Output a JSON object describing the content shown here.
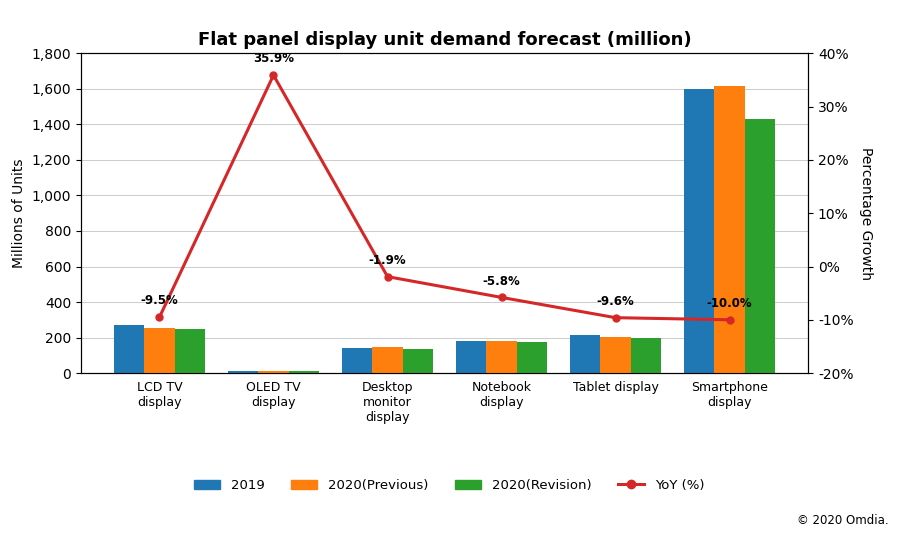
{
  "chart_data": {
    "type": "bar",
    "title": "Flat panel display unit demand forecast (million)",
    "categories": [
      "LCD TV\ndisplay",
      "OLED TV\ndisplay",
      "Desktop\nmonitor\ndisplay",
      "Notebook\ndisplay",
      "Tablet display",
      "Smartphone\ndisplay"
    ],
    "series": [
      {
        "name": "2019",
        "values": [
          270,
          14,
          140,
          180,
          215,
          1600
        ]
      },
      {
        "name": "2020(Previous)",
        "values": [
          255,
          14,
          148,
          180,
          205,
          1615
        ]
      },
      {
        "name": "2020(Revision)",
        "values": [
          248,
          11,
          138,
          175,
          196,
          1430
        ]
      },
      {
        "name": "YoY (%)",
        "type": "line",
        "axis": "y2",
        "marker": "o",
        "data_labels": true,
        "values": [
          -9.5,
          35.9,
          -1.9,
          -5.8,
          -9.6,
          -10.0
        ],
        "value_labels": [
          "-9.5%",
          "35.9%",
          "-1.9%",
          "-5.8%",
          "-9.6%",
          "-10.0%"
        ]
      }
    ],
    "ylabel": "Millions of Units",
    "y2label": "Percentage Growth",
    "ylim": [
      0,
      1800
    ],
    "yticks": [
      0,
      200,
      400,
      600,
      800,
      {
        "value": 1000,
        "label": "1,000"
      },
      {
        "value": 1200,
        "label": "1,200"
      },
      {
        "value": 1400,
        "label": "1,400"
      },
      {
        "value": 1600,
        "label": "1,600"
      },
      {
        "value": 1800,
        "label": "1,800"
      }
    ],
    "y2lim": [
      -20,
      40
    ],
    "y2ticks": [
      {
        "value": -20,
        "label": "-20%"
      },
      {
        "value": -10,
        "label": "-10%"
      },
      {
        "value": 0,
        "label": "0%"
      },
      {
        "value": 10,
        "label": "10%"
      },
      {
        "value": 20,
        "label": "20%"
      },
      {
        "value": 30,
        "label": "30%"
      },
      {
        "value": 40,
        "label": "40%"
      }
    ],
    "grid": true,
    "legend": "lower center",
    "annotations": [
      "© 2020 Omdia."
    ]
  }
}
